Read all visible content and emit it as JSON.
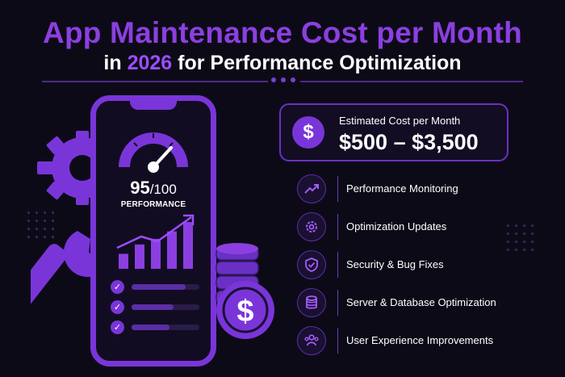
{
  "header": {
    "title_line1": "App Maintenance Cost per Month",
    "title_in": "in",
    "title_year": "2026",
    "title_rest": "for Performance Optimization"
  },
  "phone": {
    "score": "95",
    "score_total": "/100",
    "label": "PERFORMANCE",
    "progress_bars": [
      0.8,
      0.62,
      0.56
    ],
    "chart_bars": [
      0.32,
      0.52,
      0.64,
      0.8,
      1.0
    ]
  },
  "cost": {
    "caption": "Estimated Cost per Month",
    "value": "$500 – $3,500"
  },
  "features": [
    {
      "label": "Performance Monitoring",
      "icon": "trend-up-icon"
    },
    {
      "label": "Optimization Updates",
      "icon": "gear-icon"
    },
    {
      "label": "Security & Bug Fixes",
      "icon": "shield-check-icon"
    },
    {
      "label": "Server & Database Optimization",
      "icon": "database-icon"
    },
    {
      "label": "User Experience Improvements",
      "icon": "users-icon"
    }
  ],
  "colors": {
    "background": "#0d0a18",
    "accent": "#7a35d9",
    "accent_light": "#9b4dff",
    "text": "#ffffff"
  }
}
